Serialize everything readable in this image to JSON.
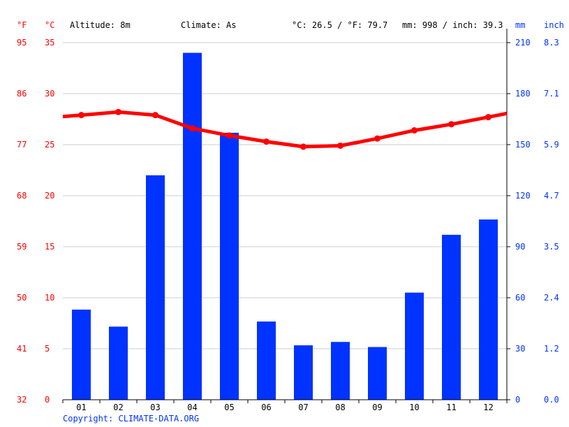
{
  "header": {
    "unit_f": "°F",
    "unit_c": "°C",
    "altitude": "Altitude: 8m",
    "climate": "Climate: As",
    "temp_summary": "°C: 26.5 / °F: 79.7",
    "precip_summary": "mm: 998 / inch: 39.3",
    "unit_mm": "mm",
    "unit_inch": "inch"
  },
  "colors": {
    "temperature": "#ff0000",
    "precipitation": "#0033ff",
    "grid": "#cccccc"
  },
  "footer": {
    "copyright": "Copyright: CLIMATE-DATA.ORG"
  },
  "chart_data": {
    "type": "bar",
    "categories": [
      "01",
      "02",
      "03",
      "04",
      "05",
      "06",
      "07",
      "08",
      "09",
      "10",
      "11",
      "12"
    ],
    "series": [
      {
        "type": "bar",
        "axis": "right-mm",
        "values": [
          53,
          43,
          132,
          204,
          157,
          46,
          32,
          34,
          31,
          63,
          97,
          106
        ]
      },
      {
        "type": "line",
        "axis": "left-celsius",
        "values": [
          27.9,
          28.2,
          27.9,
          26.6,
          25.9,
          25.3,
          24.8,
          24.9,
          25.6,
          26.4,
          27.0,
          27.7
        ]
      }
    ],
    "ylim_celsius": [
      0,
      35
    ],
    "ylim_mm": [
      0,
      210
    ],
    "ticks_celsius": [
      "0",
      "5",
      "10",
      "15",
      "20",
      "25",
      "30",
      "35"
    ],
    "ticks_fahrenheit": [
      "32",
      "41",
      "50",
      "59",
      "68",
      "77",
      "86",
      "95"
    ],
    "ticks_mm": [
      "0",
      "30",
      "60",
      "90",
      "120",
      "150",
      "180",
      "210"
    ],
    "ticks_inch": [
      "0.0",
      "1.2",
      "2.4",
      "3.5",
      "4.7",
      "5.9",
      "7.1",
      "8.3"
    ],
    "grid": true
  }
}
